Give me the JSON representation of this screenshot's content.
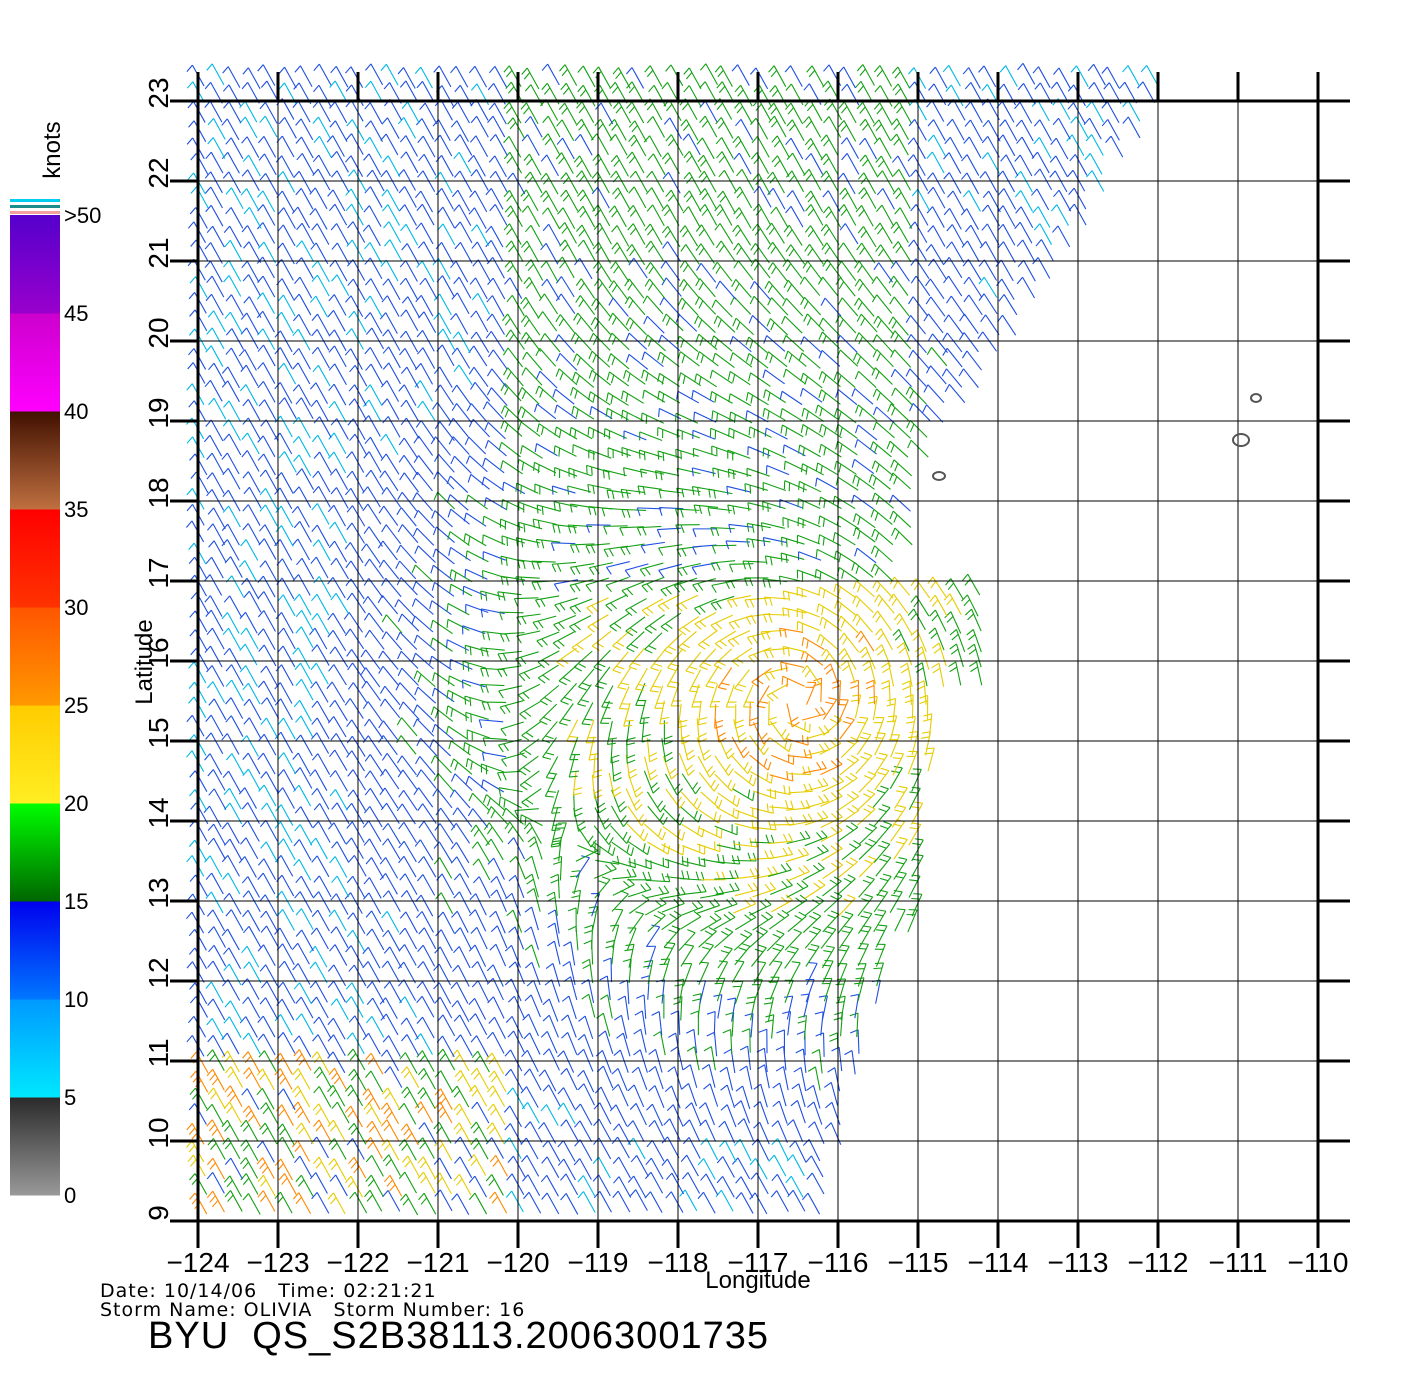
{
  "map": {
    "x_axis_title": "Longitude",
    "y_axis_title": "Latitude",
    "longitude_ticks": [
      "−124",
      "−123",
      "−122",
      "−121",
      "−120",
      "−119",
      "−118",
      "−117",
      "−116",
      "−115",
      "−114",
      "−113",
      "−112",
      "−111",
      "−110"
    ],
    "latitude_ticks": [
      "9",
      "10",
      "11",
      "12",
      "13",
      "14",
      "15",
      "16",
      "17",
      "18",
      "19",
      "20",
      "21",
      "22",
      "23"
    ],
    "lon_range": [
      -124,
      -110
    ],
    "lat_range": [
      9,
      23
    ]
  },
  "colorbar": {
    "unit": "knots",
    "labels": [
      "0",
      "5",
      "10",
      "15",
      "20",
      "25",
      "30",
      "35",
      "40",
      "45",
      ">50"
    ],
    "colors": {
      "0-5": "#808080",
      "5-10": "#00ccff",
      "10-15": "#0066ff",
      "15-20": "#00cc00",
      "20-25": "#ffdd00",
      "25-30": "#ff6600",
      "30-35": "#ff2200",
      "35-40": "#8b4513",
      "40-45": "#ff00ff",
      "45-50": "#6600cc"
    }
  },
  "info": {
    "date_line": "Date: 10/14/06   Time: 02:21:21",
    "storm_line": "Storm Name: OLIVIA   Storm Number: 16"
  },
  "footer": {
    "title": "BYU  QS_S2B38113.20063001735"
  },
  "wind_field": {
    "storm_center": [
      -116.5,
      15.5
    ],
    "color_by_speed_knots": {
      "5": "#00ccff",
      "10": "#1e5fe0",
      "15": "#1aa01a",
      "20": "#e6d000",
      "25": "#ff8800",
      "30": "#cc3300"
    }
  }
}
